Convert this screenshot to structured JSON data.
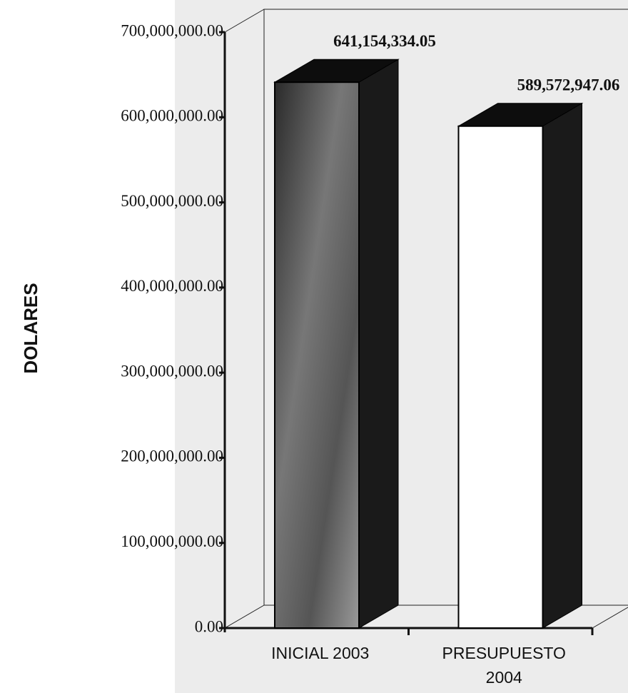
{
  "chart_data": {
    "type": "bar3d",
    "ylabel": "DOLARES",
    "categories": [
      "INICIAL 2003",
      "PRESUPUESTO 2004"
    ],
    "values": [
      641154334.05,
      589572947.06
    ],
    "value_labels": [
      "641,154,334.05",
      "589,572,947.06"
    ],
    "ylim": [
      0,
      700000000
    ],
    "yticks": [
      {
        "value": 0,
        "label": "0.00"
      },
      {
        "value": 100000000,
        "label": "100,000,000.00"
      },
      {
        "value": 200000000,
        "label": "200,000,000.00"
      },
      {
        "value": 300000000,
        "label": "300,000,000.00"
      },
      {
        "value": 400000000,
        "label": "400,000,000.00"
      },
      {
        "value": 500000000,
        "label": "500,000,000.00"
      },
      {
        "value": 600000000,
        "label": "600,000,000.00"
      },
      {
        "value": 700000000,
        "label": "700,000,000.00"
      }
    ]
  }
}
